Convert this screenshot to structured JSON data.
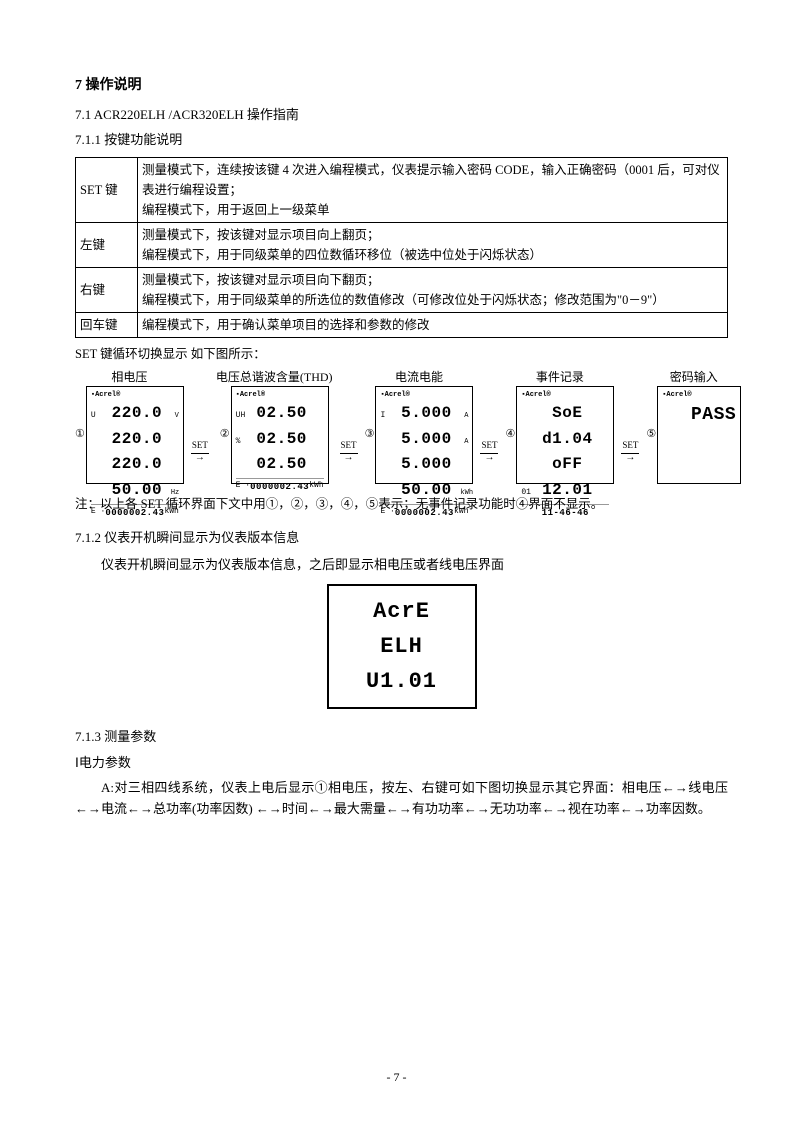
{
  "headings": {
    "h1": "7 操作说明",
    "h2": "7.1 ACR220ELH /ACR320ELH 操作指南",
    "h3_1": "7.1.1 按键功能说明",
    "cycle_caption": "SET 键循环切换显示 如下图所示：",
    "note": "注：以上各 SET 循环界面下文中用①，②，③，④，⑤表示；无事件记录功能时④界面不显示。",
    "h3_2": "7.1.2 仪表开机瞬间显示为仪表版本信息",
    "boot_p": "仪表开机瞬间显示为仪表版本信息，之后即显示相电压或者线电压界面",
    "h3_3": "7.1.3 测量参数",
    "params_sub": "Ⅰ电力参数",
    "params_p": "A:对三相四线系统，仪表上电后显示①相电压，按左、右键可如下图切换显示其它界面：相电压←→线电压←→电流←→总功率(功率因数) ←→时间←→最大需量←→有功功率←→无功功率←→视在功率←→功率因数。"
  },
  "table": {
    "rows": [
      {
        "key": "SET 键",
        "desc": "测量模式下，连续按该键 4 次进入编程模式，仪表提示输入密码 CODE，输入正确密码（0001 后，可对仪表进行编程设置；<br>编程模式下，用于返回上一级菜单"
      },
      {
        "key": "左键",
        "desc": "测量模式下，按该键对显示项目向上翻页；<br>编程模式下，用于同级菜单的四位数循环移位（被选中位处于闪烁状态）"
      },
      {
        "key": "右键",
        "desc": "测量模式下，按该键对显示项目向下翻页；<br>编程模式下，用于同级菜单的所选位的数值修改（可修改位处于闪烁状态；修改范围为\"0－9\"）"
      },
      {
        "key": "回车键",
        "desc": "编程模式下，用于确认菜单项目的选择和参数的修改"
      }
    ]
  },
  "diagrams": {
    "set_label": "SET",
    "items": [
      {
        "num": "①",
        "title": "相电压",
        "lines": [
          {
            "l": "U",
            "m": "220.0",
            "r": "V"
          },
          {
            "l": "",
            "m": "220.0",
            "r": ""
          },
          {
            "l": "",
            "m": "220.0",
            "r": ""
          },
          {
            "l": "",
            "m": "50.00",
            "r": "Hz"
          }
        ],
        "bottom": {
          "l": "E ·",
          "v": "0000002.43",
          "r": "kWh"
        }
      },
      {
        "num": "②",
        "title": "电压总谐波含量(THD)",
        "lines": [
          {
            "l": "UH",
            "m": "02.50",
            "r": ""
          },
          {
            "l": "%",
            "m": "02.50",
            "r": ""
          },
          {
            "l": "",
            "m": "02.50",
            "r": ""
          },
          {
            "l": "",
            "m": "",
            "r": ""
          }
        ],
        "bottom": {
          "l": "E ·",
          "v": "0000002.43",
          "r": "kWh"
        }
      },
      {
        "num": "③",
        "title": "电流电能",
        "lines": [
          {
            "l": "I",
            "m": "5.000",
            "r": "A"
          },
          {
            "l": "",
            "m": "5.000",
            "r": "A"
          },
          {
            "l": "",
            "m": "5.000",
            "r": ""
          },
          {
            "l": "",
            "m": "50.00",
            "r": "kWh"
          }
        ],
        "bottom": {
          "l": "E ·",
          "v": "0000002.43",
          "r": "kWh"
        }
      },
      {
        "num": "④",
        "title": "事件记录",
        "lines": [
          {
            "l": "",
            "m": "SoE",
            "r": ""
          },
          {
            "l": "",
            "m": "d1.04",
            "r": ""
          },
          {
            "l": "",
            "m": "oFF",
            "r": ""
          },
          {
            "l": "01",
            "m": "12.01",
            "r": ""
          }
        ],
        "bottom": {
          "l": "",
          "v": "11-46-46",
          "r": ""
        }
      },
      {
        "num": "⑤",
        "title": "密码输入",
        "pass": "PASS"
      }
    ]
  },
  "boot": {
    "l1": "AcrE",
    "l2": "ELH",
    "l3": "U1.01"
  },
  "page": "- 7 -"
}
